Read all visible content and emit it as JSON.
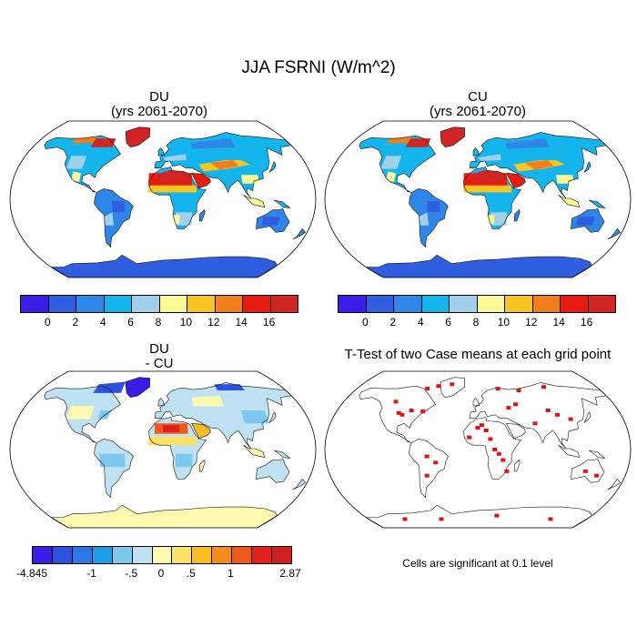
{
  "title": "JJA FSRNI (W/m^2)",
  "panels": [
    {
      "id": "du",
      "title_lines": [
        "DU",
        "(yrs 2061-2070)"
      ],
      "field": "mean"
    },
    {
      "id": "cu",
      "title_lines": [
        "CU",
        "(yrs 2061-2070)"
      ],
      "field": "mean"
    },
    {
      "id": "diff",
      "title_lines": [
        "DU",
        "- CU"
      ],
      "field": "diff"
    },
    {
      "id": "ttest",
      "title_lines": [
        "T-Test of two Case means at each grid point"
      ],
      "field": "ttest"
    }
  ],
  "colorbar_mean": {
    "colors": [
      "#3b1fe8",
      "#2f5ee0",
      "#2e87e8",
      "#14b4ec",
      "#a0d0ec",
      "#fbfa96",
      "#f7c623",
      "#f27e1e",
      "#e81b11",
      "#d12523"
    ],
    "labels": [
      "0",
      "2",
      "4",
      "6",
      "8",
      "10",
      "12",
      "14",
      "16"
    ]
  },
  "colorbar_diff": {
    "colors": [
      "#3a1de6",
      "#2d52df",
      "#2c78e4",
      "#1d9ee9",
      "#7cc8ee",
      "#bfe2f2",
      "#fff9b0",
      "#fbe266",
      "#f8bd22",
      "#f48c1c",
      "#ee5a1a",
      "#e2201b",
      "#cf1f1f"
    ],
    "labels": [
      "-4.845",
      "-1",
      "-.5",
      "0",
      ".5",
      "1",
      "2.87"
    ]
  },
  "significance_color": "#e61010",
  "note": "Cells are significant at 0.1 level"
}
